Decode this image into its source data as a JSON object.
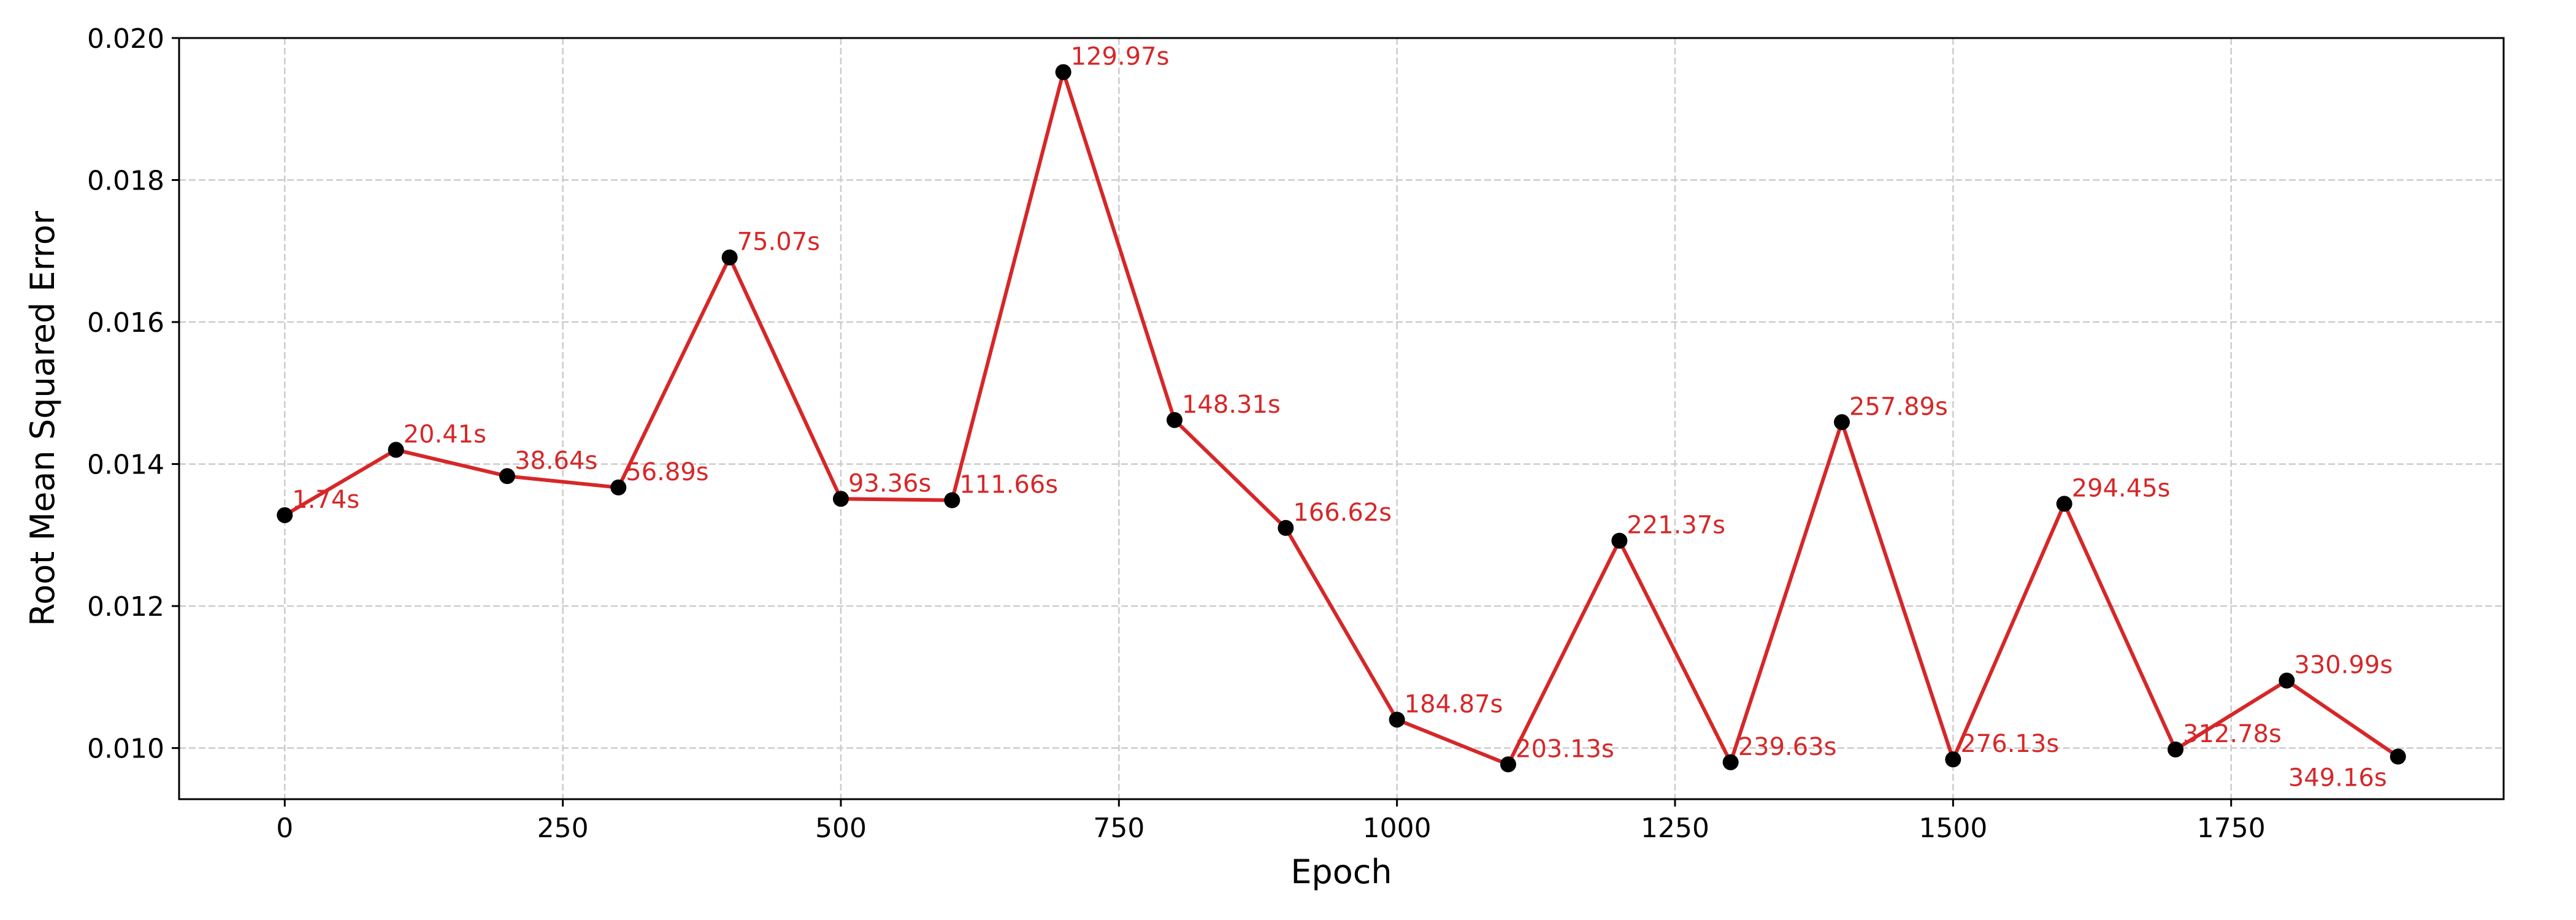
{
  "chart_data": {
    "type": "line",
    "title": "",
    "xlabel": "Epoch",
    "ylabel": "Root Mean Squared Error",
    "xlim": [
      -95,
      1995
    ],
    "ylim": [
      0.00928,
      0.02
    ],
    "xticks": [
      0,
      250,
      500,
      750,
      1000,
      1250,
      1500,
      1750
    ],
    "xtick_labels": [
      "0",
      "250",
      "500",
      "750",
      "1000",
      "1250",
      "1500",
      "1750"
    ],
    "yticks": [
      0.01,
      0.012,
      0.014,
      0.016,
      0.018,
      0.02
    ],
    "ytick_labels": [
      "0.010",
      "0.012",
      "0.014",
      "0.016",
      "0.018",
      "0.020"
    ],
    "grid": true,
    "line_color": "#d62728",
    "marker_color": "#000000",
    "label_color": "#d62728",
    "series": [
      {
        "x": [
          0,
          100,
          200,
          300,
          400,
          500,
          600,
          700,
          800,
          900,
          1000,
          1100,
          1200,
          1300,
          1400,
          1500,
          1600,
          1700,
          1800,
          1900
        ],
        "values": [
          0.01328,
          0.0142,
          0.01383,
          0.01367,
          0.01691,
          0.01351,
          0.01349,
          0.01952,
          0.01462,
          0.0131,
          0.0104,
          0.00977,
          0.01292,
          0.0098,
          0.01459,
          0.00984,
          0.01344,
          0.00998,
          0.01095,
          0.00988
        ],
        "point_labels": [
          "1.74s",
          "20.41s",
          "38.64s",
          "56.89s",
          "75.07s",
          "93.36s",
          "111.66s",
          "129.97s",
          "148.31s",
          "166.62s",
          "184.87s",
          "203.13s",
          "221.37s",
          "239.63s",
          "257.89s",
          "276.13s",
          "294.45s",
          "312.78s",
          "330.99s",
          "349.16s"
        ]
      }
    ]
  }
}
